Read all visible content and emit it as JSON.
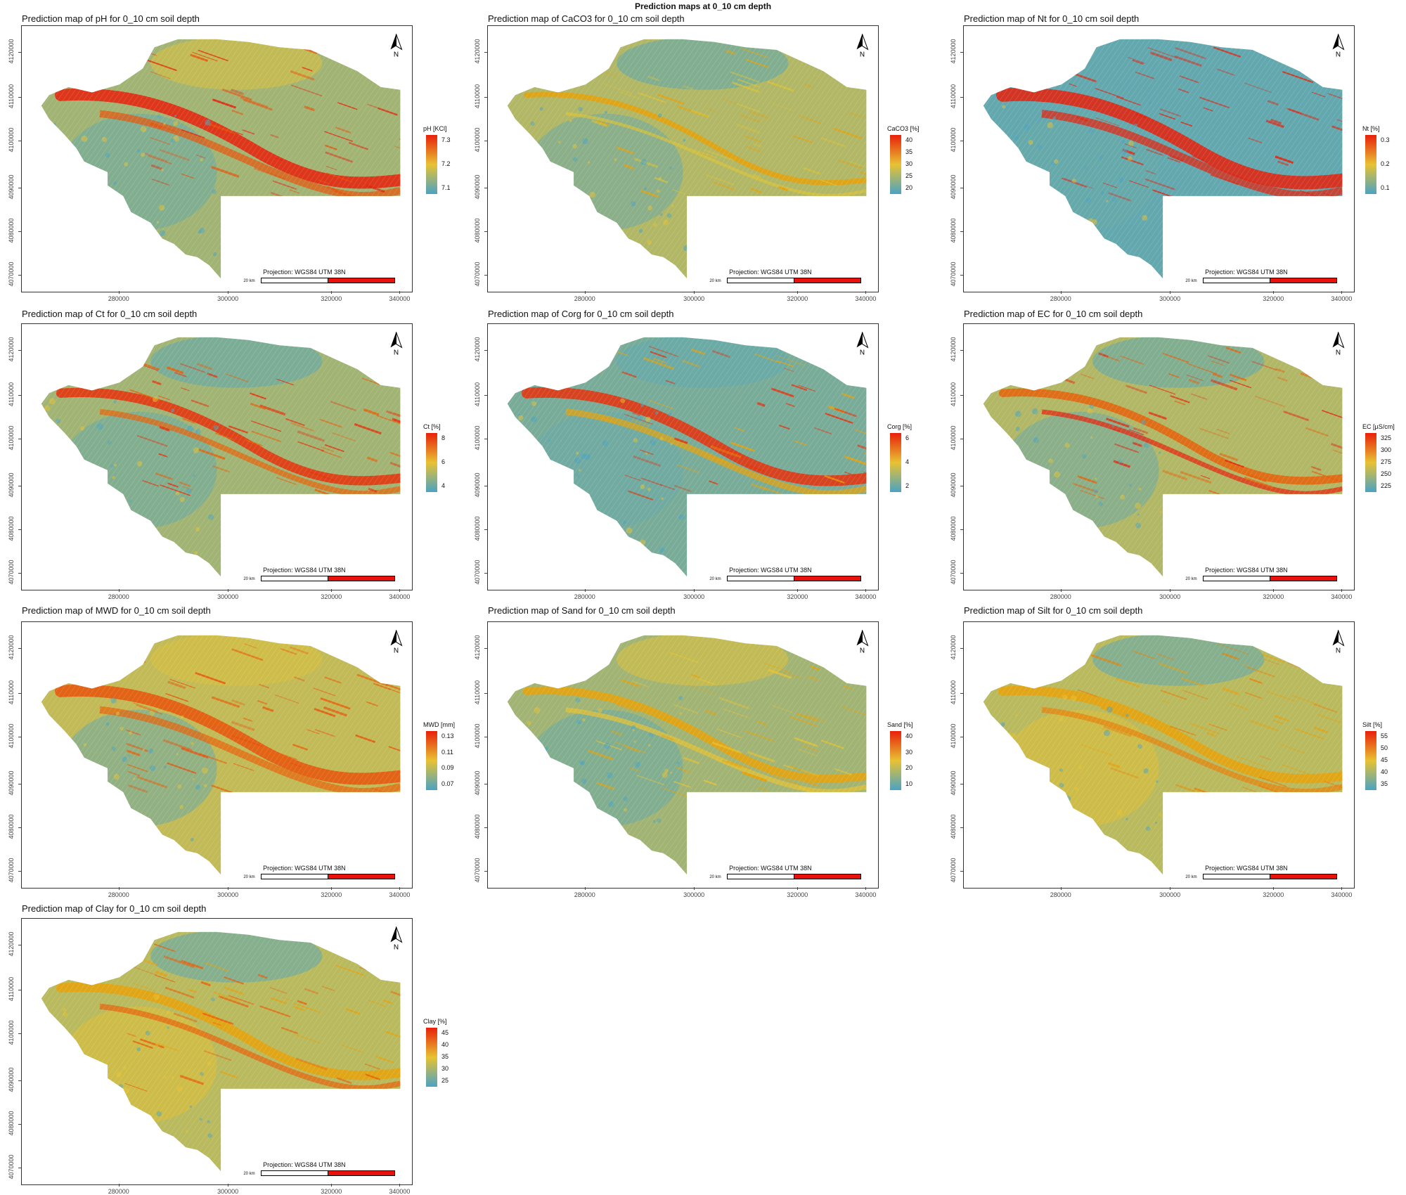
{
  "figure_title": "Prediction maps at 0_10 cm depth",
  "projection_label": "Projection: WGS84 UTM 38N",
  "scale_label": "20 km",
  "north_label": "N",
  "x_ticks": [
    "280000",
    "300000",
    "320000",
    "340000"
  ],
  "y_ticks": [
    "4120000",
    "4110000",
    "4100000",
    "4090000",
    "4080000",
    "4070000"
  ],
  "colors": {
    "low": "#4aa3c4",
    "mid": "#e8c232",
    "high": "#e8200a",
    "frame": "#333333"
  },
  "chart_data": [
    {
      "type": "heatmap",
      "variable": "pH",
      "title": "Prediction map of pH for 0_10 cm soil depth",
      "legend_title": "pH [KCl]",
      "legend_ticks": [
        "7.3",
        "7.2",
        "7.1"
      ],
      "xlim": [
        263000,
        341000
      ],
      "ylim": [
        4067000,
        4123000
      ],
      "palette": [
        "#4aa3c4",
        "#e8c232",
        "#e8200a"
      ]
    },
    {
      "type": "heatmap",
      "variable": "CaCO3",
      "title": "Prediction map of CaCO3 for 0_10 cm soil depth",
      "legend_title": "CaCO3 [%]",
      "legend_ticks": [
        "40",
        "35",
        "30",
        "25",
        "20"
      ],
      "xlim": [
        263000,
        341000
      ],
      "ylim": [
        4067000,
        4123000
      ],
      "palette": [
        "#4aa3c4",
        "#e8c232",
        "#e8200a"
      ]
    },
    {
      "type": "heatmap",
      "variable": "Nt",
      "title": "Prediction map of Nt for 0_10 cm soil depth",
      "legend_title": "Nt [%]",
      "legend_ticks": [
        "0.3",
        "0.2",
        "0.1"
      ],
      "xlim": [
        263000,
        341000
      ],
      "ylim": [
        4067000,
        4123000
      ],
      "palette": [
        "#4aa3c4",
        "#e8c232",
        "#e8200a"
      ]
    },
    {
      "type": "heatmap",
      "variable": "Ct",
      "title": "Prediction map of Ct for 0_10 cm soil depth",
      "legend_title": "Ct [%]",
      "legend_ticks": [
        "8",
        "6",
        "4"
      ],
      "xlim": [
        263000,
        341000
      ],
      "ylim": [
        4067000,
        4123000
      ],
      "palette": [
        "#4aa3c4",
        "#e8c232",
        "#e8200a"
      ]
    },
    {
      "type": "heatmap",
      "variable": "Corg",
      "title": "Prediction map of Corg for 0_10 cm soil depth",
      "legend_title": "Corg [%]",
      "legend_ticks": [
        "6",
        "4",
        "2"
      ],
      "xlim": [
        263000,
        341000
      ],
      "ylim": [
        4067000,
        4123000
      ],
      "palette": [
        "#4aa3c4",
        "#e8c232",
        "#e8200a"
      ]
    },
    {
      "type": "heatmap",
      "variable": "EC",
      "title": "Prediction map of EC for 0_10 cm soil depth",
      "legend_title": "EC [µS/cm]",
      "legend_ticks": [
        "325",
        "300",
        "275",
        "250",
        "225"
      ],
      "xlim": [
        263000,
        341000
      ],
      "ylim": [
        4067000,
        4123000
      ],
      "palette": [
        "#4aa3c4",
        "#e8c232",
        "#e8200a"
      ]
    },
    {
      "type": "heatmap",
      "variable": "MWD",
      "title": "Prediction map of MWD for 0_10 cm soil depth",
      "legend_title": "MWD [mm]",
      "legend_ticks": [
        "0.13",
        "0.11",
        "0.09",
        "0.07"
      ],
      "xlim": [
        263000,
        341000
      ],
      "ylim": [
        4067000,
        4123000
      ],
      "palette": [
        "#4aa3c4",
        "#e8c232",
        "#e8200a"
      ]
    },
    {
      "type": "heatmap",
      "variable": "Sand",
      "title": "Prediction map of Sand for 0_10 cm soil depth",
      "legend_title": "Sand [%]",
      "legend_ticks": [
        "40",
        "30",
        "20",
        "10"
      ],
      "xlim": [
        263000,
        341000
      ],
      "ylim": [
        4067000,
        4123000
      ],
      "palette": [
        "#4aa3c4",
        "#e8c232",
        "#e8200a"
      ]
    },
    {
      "type": "heatmap",
      "variable": "Silt",
      "title": "Prediction map of Silt for 0_10 cm soil depth",
      "legend_title": "Silt [%]",
      "legend_ticks": [
        "55",
        "50",
        "45",
        "40",
        "35"
      ],
      "xlim": [
        263000,
        341000
      ],
      "ylim": [
        4067000,
        4123000
      ],
      "palette": [
        "#4aa3c4",
        "#e8c232",
        "#e8200a"
      ]
    },
    {
      "type": "heatmap",
      "variable": "Clay",
      "title": "Prediction map of Clay for 0_10 cm soil depth",
      "legend_title": "Clay [%]",
      "legend_ticks": [
        "45",
        "40",
        "35",
        "30",
        "25"
      ],
      "xlim": [
        263000,
        341000
      ],
      "ylim": [
        4067000,
        4123000
      ],
      "palette": [
        "#4aa3c4",
        "#e8c232",
        "#e8200a"
      ]
    }
  ]
}
